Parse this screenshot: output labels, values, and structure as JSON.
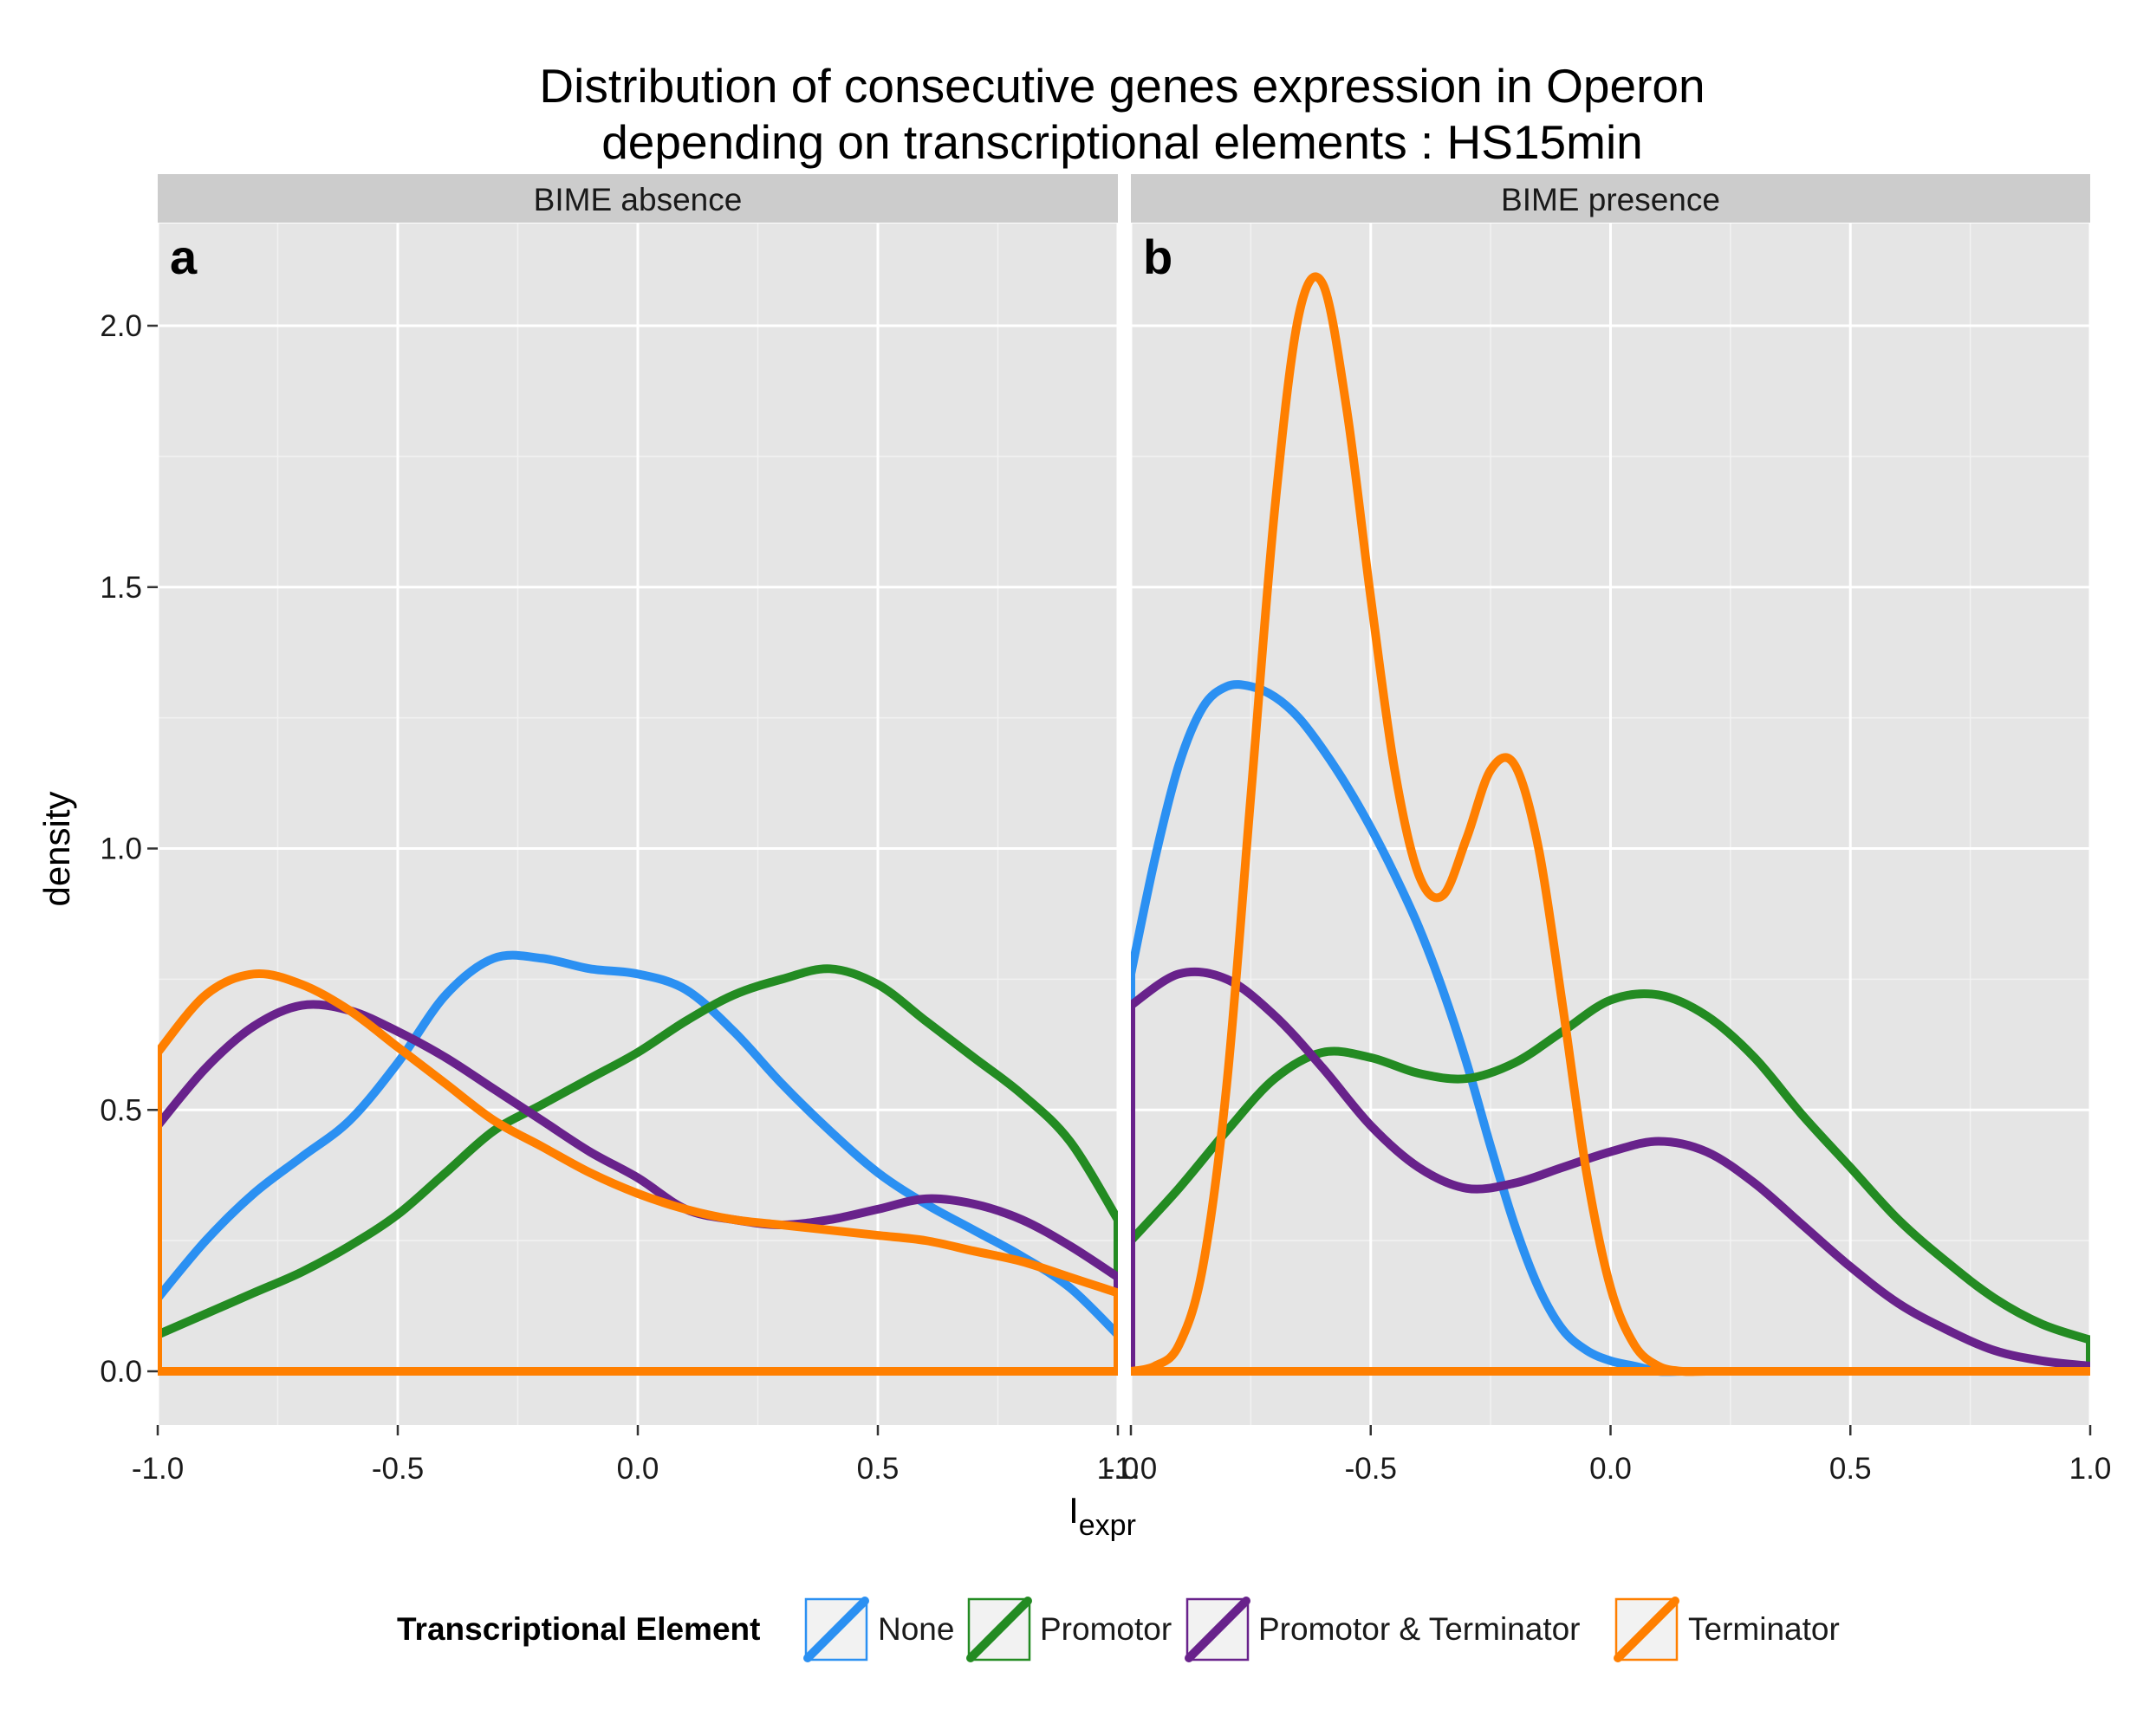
{
  "chart_data": {
    "type": "line",
    "title_lines": [
      "Distribution of consecutive genes expression in Operon",
      "depending on transcriptional elements : HS15min"
    ],
    "xlabel_main": "I",
    "xlabel_sub": "expr",
    "ylabel": "density",
    "xlim": [
      -1.0,
      1.0
    ],
    "ylim": [
      0,
      2.2
    ],
    "x_ticks": [
      -1.0,
      -0.5,
      0.0,
      0.5,
      1.0
    ],
    "x_tick_labels": [
      "-1.0",
      "-0.5",
      "0.0",
      "0.5",
      "1.0"
    ],
    "y_ticks": [
      0.0,
      0.5,
      1.0,
      1.5,
      2.0
    ],
    "y_tick_labels": [
      "0.0",
      "0.5",
      "1.0",
      "1.5",
      "2.0"
    ],
    "grid": true,
    "legend": {
      "title": "Transcriptional Element",
      "position": "bottom",
      "entries": [
        "None",
        "Promotor",
        "Promotor & Terminator",
        "Terminator"
      ]
    },
    "colors": {
      "None": "#2b90f2",
      "Promotor": "#238b22",
      "Promotor & Terminator": "#68228b",
      "Terminator": "#ff7f00"
    },
    "panels": [
      {
        "strip": "BIME absence",
        "tag": "a",
        "series": [
          {
            "name": "None",
            "x": [
              -1.0,
              -0.9,
              -0.8,
              -0.7,
              -0.6,
              -0.5,
              -0.4,
              -0.3,
              -0.2,
              -0.1,
              0.0,
              0.1,
              0.2,
              0.3,
              0.4,
              0.5,
              0.6,
              0.7,
              0.8,
              0.9,
              1.0
            ],
            "y": [
              0.14,
              0.25,
              0.34,
              0.41,
              0.48,
              0.59,
              0.72,
              0.79,
              0.79,
              0.77,
              0.76,
              0.73,
              0.65,
              0.55,
              0.46,
              0.38,
              0.32,
              0.27,
              0.22,
              0.16,
              0.07
            ]
          },
          {
            "name": "Promotor",
            "x": [
              -1.0,
              -0.9,
              -0.8,
              -0.7,
              -0.6,
              -0.5,
              -0.4,
              -0.3,
              -0.2,
              -0.1,
              0.0,
              0.1,
              0.2,
              0.3,
              0.4,
              0.5,
              0.6,
              0.7,
              0.8,
              0.9,
              1.0
            ],
            "y": [
              0.07,
              0.11,
              0.15,
              0.19,
              0.24,
              0.3,
              0.38,
              0.46,
              0.51,
              0.56,
              0.61,
              0.67,
              0.72,
              0.75,
              0.77,
              0.74,
              0.67,
              0.6,
              0.53,
              0.44,
              0.29
            ]
          },
          {
            "name": "Promotor & Terminator",
            "x": [
              -1.0,
              -0.9,
              -0.8,
              -0.7,
              -0.6,
              -0.5,
              -0.4,
              -0.3,
              -0.2,
              -0.1,
              0.0,
              0.1,
              0.2,
              0.3,
              0.4,
              0.5,
              0.6,
              0.7,
              0.8,
              0.9,
              1.0
            ],
            "y": [
              0.47,
              0.58,
              0.66,
              0.7,
              0.69,
              0.65,
              0.6,
              0.54,
              0.48,
              0.42,
              0.37,
              0.31,
              0.29,
              0.28,
              0.29,
              0.31,
              0.33,
              0.32,
              0.29,
              0.24,
              0.18
            ]
          },
          {
            "name": "Terminator",
            "x": [
              -1.0,
              -0.9,
              -0.8,
              -0.7,
              -0.6,
              -0.5,
              -0.4,
              -0.3,
              -0.2,
              -0.1,
              0.0,
              0.1,
              0.2,
              0.3,
              0.4,
              0.5,
              0.6,
              0.7,
              0.8,
              0.9,
              1.0
            ],
            "y": [
              0.61,
              0.72,
              0.76,
              0.74,
              0.69,
              0.62,
              0.55,
              0.48,
              0.43,
              0.38,
              0.34,
              0.31,
              0.29,
              0.28,
              0.27,
              0.26,
              0.25,
              0.23,
              0.21,
              0.18,
              0.15
            ]
          }
        ]
      },
      {
        "strip": "BIME presence",
        "tag": "b",
        "series": [
          {
            "name": "None",
            "x": [
              -1.0,
              -0.95,
              -0.9,
              -0.85,
              -0.8,
              -0.75,
              -0.7,
              -0.65,
              -0.6,
              -0.55,
              -0.5,
              -0.45,
              -0.4,
              -0.35,
              -0.3,
              -0.25,
              -0.2,
              -0.15,
              -0.1,
              -0.05,
              0.0,
              0.05,
              0.1,
              0.15,
              0.2,
              0.3,
              0.5,
              1.0
            ],
            "y": [
              0.76,
              0.98,
              1.16,
              1.27,
              1.31,
              1.31,
              1.29,
              1.25,
              1.19,
              1.12,
              1.04,
              0.95,
              0.85,
              0.73,
              0.59,
              0.43,
              0.28,
              0.16,
              0.08,
              0.04,
              0.02,
              0.01,
              0.0,
              0.0,
              0.0,
              0.0,
              0.0,
              0.0
            ]
          },
          {
            "name": "Promotor",
            "x": [
              -1.0,
              -0.9,
              -0.8,
              -0.7,
              -0.6,
              -0.5,
              -0.4,
              -0.3,
              -0.2,
              -0.1,
              0.0,
              0.1,
              0.2,
              0.3,
              0.4,
              0.5,
              0.6,
              0.7,
              0.8,
              0.9,
              1.0
            ],
            "y": [
              0.25,
              0.35,
              0.46,
              0.56,
              0.61,
              0.6,
              0.57,
              0.56,
              0.59,
              0.65,
              0.71,
              0.72,
              0.68,
              0.6,
              0.49,
              0.39,
              0.29,
              0.21,
              0.14,
              0.09,
              0.06
            ]
          },
          {
            "name": "Promotor & Terminator",
            "x": [
              -1.0,
              -0.9,
              -0.8,
              -0.7,
              -0.6,
              -0.5,
              -0.4,
              -0.3,
              -0.2,
              -0.1,
              0.0,
              0.1,
              0.2,
              0.3,
              0.4,
              0.5,
              0.6,
              0.7,
              0.8,
              0.9,
              1.0
            ],
            "y": [
              0.7,
              0.76,
              0.75,
              0.68,
              0.58,
              0.47,
              0.39,
              0.35,
              0.36,
              0.39,
              0.42,
              0.44,
              0.42,
              0.36,
              0.28,
              0.2,
              0.13,
              0.08,
              0.04,
              0.02,
              0.01
            ]
          },
          {
            "name": "Terminator",
            "x": [
              -1.0,
              -0.95,
              -0.9,
              -0.85,
              -0.8,
              -0.75,
              -0.7,
              -0.65,
              -0.6,
              -0.55,
              -0.5,
              -0.45,
              -0.4,
              -0.35,
              -0.3,
              -0.25,
              -0.2,
              -0.15,
              -0.1,
              -0.05,
              0.0,
              0.05,
              0.1,
              0.15,
              0.2,
              0.3,
              0.5,
              1.0
            ],
            "y": [
              0.0,
              0.01,
              0.05,
              0.2,
              0.55,
              1.1,
              1.65,
              2.02,
              2.08,
              1.84,
              1.48,
              1.15,
              0.95,
              0.91,
              1.02,
              1.15,
              1.16,
              1.0,
              0.7,
              0.38,
              0.16,
              0.05,
              0.01,
              0.0,
              0.0,
              0.0,
              0.0,
              0.0
            ]
          }
        ]
      }
    ]
  }
}
